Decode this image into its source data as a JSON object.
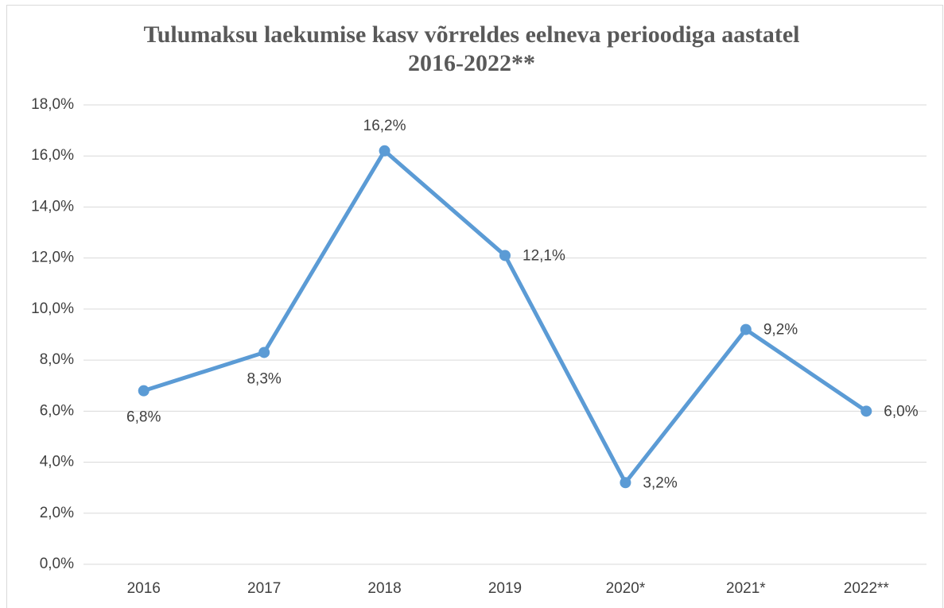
{
  "chart_data": {
    "type": "line",
    "title": [
      "Tulumaksu laekumise kasv võrreldes eelneva perioodiga aastatel",
      "2016-2022**"
    ],
    "categories": [
      "2016",
      "2017",
      "2018",
      "2019",
      "2020*",
      "2021*",
      "2022**"
    ],
    "series": [
      {
        "name": "Tulumaksu laekumise kasv",
        "color": "#5b9bd5",
        "values": [
          6.8,
          8.3,
          16.2,
          12.1,
          3.2,
          9.2,
          6.0
        ],
        "value_labels": [
          "6,8%",
          "8,3%",
          "16,2%",
          "12,1%",
          "3,2%",
          "9,2%",
          "6,0%"
        ]
      }
    ],
    "ylim": [
      0,
      18
    ],
    "yticks": [
      {
        "value": 0,
        "label": "0,0%"
      },
      {
        "value": 2,
        "label": "2,0%"
      },
      {
        "value": 4,
        "label": "4,0%"
      },
      {
        "value": 6,
        "label": "6,0%"
      },
      {
        "value": 8,
        "label": "8,0%"
      },
      {
        "value": 10,
        "label": "10,0%"
      },
      {
        "value": 12,
        "label": "12,0%"
      },
      {
        "value": 14,
        "label": "14,0%"
      },
      {
        "value": 16,
        "label": "16,0%"
      },
      {
        "value": 18,
        "label": "18,0%"
      }
    ],
    "grid": true
  }
}
